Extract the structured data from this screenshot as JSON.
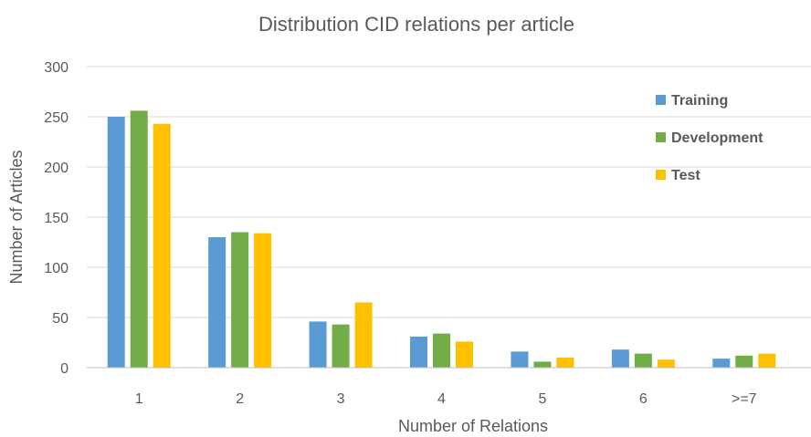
{
  "chart_data": {
    "type": "bar",
    "title": "Distribution CID relations per article",
    "xlabel": "Number of Relations",
    "ylabel": "Number of Articles",
    "categories": [
      "1",
      "2",
      "3",
      "4",
      "5",
      "6",
      ">=7"
    ],
    "series": [
      {
        "name": "Training",
        "color": "#5B9BD5",
        "values": [
          250,
          130,
          46,
          31,
          16,
          18,
          9
        ]
      },
      {
        "name": "Development",
        "color": "#70AD47",
        "values": [
          256,
          135,
          43,
          34,
          6,
          14,
          12
        ]
      },
      {
        "name": "Test",
        "color": "#FFC000",
        "values": [
          243,
          134,
          65,
          26,
          10,
          8,
          14
        ]
      }
    ],
    "ylim": [
      0,
      300
    ],
    "yticks": [
      0,
      50,
      100,
      150,
      200,
      250,
      300
    ],
    "grid": true,
    "legend_position": "top-right"
  }
}
